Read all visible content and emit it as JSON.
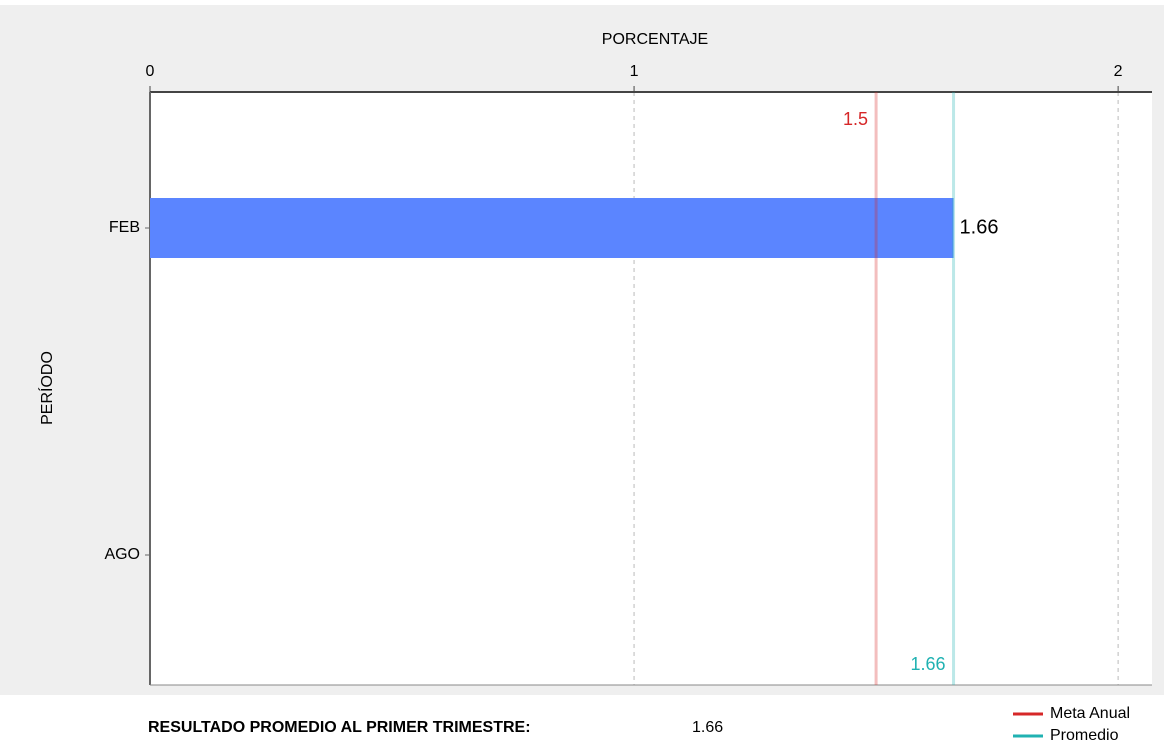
{
  "chart_data": {
    "type": "bar",
    "orientation": "horizontal",
    "x_label": "PORCENTAJE",
    "y_label": "PERÍODO",
    "categories": [
      "FEB",
      "AGO"
    ],
    "values": [
      1.66,
      null
    ],
    "color": "#5b85ff",
    "xlim": [
      0,
      2.07
    ],
    "xticks": [
      0,
      1,
      2
    ],
    "grid": true,
    "reference_lines": [
      {
        "name": "Meta Anual",
        "value": 1.5,
        "color": "#d62728"
      },
      {
        "name": "Promedio",
        "value": 1.66,
        "color": "#20b2b2"
      }
    ],
    "legend": "bottom-right",
    "summary": {
      "label": "RESULTADO PROMEDIO AL PRIMER TRIMESTRE:",
      "value": 1.66
    }
  }
}
